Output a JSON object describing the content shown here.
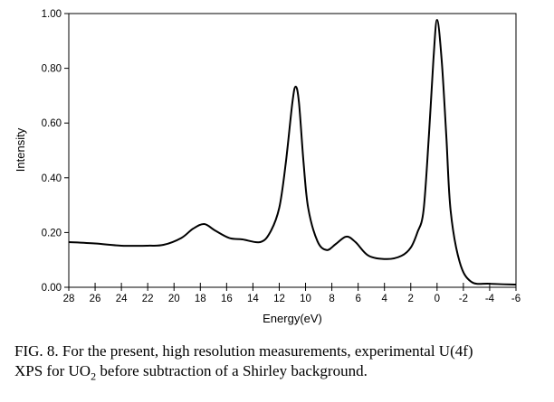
{
  "chart_data": {
    "type": "line",
    "title": "",
    "xlabel": "Energy(eV)",
    "ylabel": "Intensity",
    "xlim": [
      28,
      -6
    ],
    "ylim": [
      0,
      1.0
    ],
    "x_reversed": true,
    "grid": false,
    "x_ticks": [
      "28",
      "26",
      "24",
      "22",
      "20",
      "18",
      "16",
      "14",
      "12",
      "10",
      "8",
      "6",
      "4",
      "2",
      "0",
      "-2",
      "-4",
      "-6"
    ],
    "y_ticks": [
      "0.00",
      "0.20",
      "0.40",
      "0.60",
      "0.80",
      "1.00"
    ],
    "line_color": "#000000",
    "series": [
      {
        "x": [
          28,
          26,
          24,
          22,
          20.8,
          19.45,
          18.55,
          17.7,
          16.9,
          15.8,
          14.8,
          13.45,
          12.7,
          12.0,
          11.5,
          11.0,
          10.75,
          10.5,
          10.15,
          9.8,
          9.1,
          8.4,
          7.7,
          6.9,
          6.2,
          5.2,
          3.8,
          2.7,
          2.0,
          1.5,
          1.03,
          0.62,
          0.28,
          0,
          -0.35,
          -0.7,
          -1.03,
          -1.72,
          -2.6,
          -4,
          -6
        ],
        "y": [
          0.165,
          0.16,
          0.152,
          0.152,
          0.155,
          0.18,
          0.214,
          0.231,
          0.208,
          0.18,
          0.175,
          0.165,
          0.2,
          0.29,
          0.455,
          0.675,
          0.733,
          0.675,
          0.455,
          0.29,
          0.169,
          0.136,
          0.158,
          0.185,
          0.165,
          0.115,
          0.103,
          0.115,
          0.145,
          0.2,
          0.28,
          0.555,
          0.83,
          0.977,
          0.83,
          0.555,
          0.28,
          0.092,
          0.02,
          0.013,
          0.01
        ]
      }
    ]
  },
  "caption": {
    "line1": "FIG. 8.  For the present, high resolution measurements, experimental U(4f)",
    "line2_pre": "XPS for UO",
    "line2_sub": "2",
    "line2_post": " before subtraction of a Shirley background."
  }
}
